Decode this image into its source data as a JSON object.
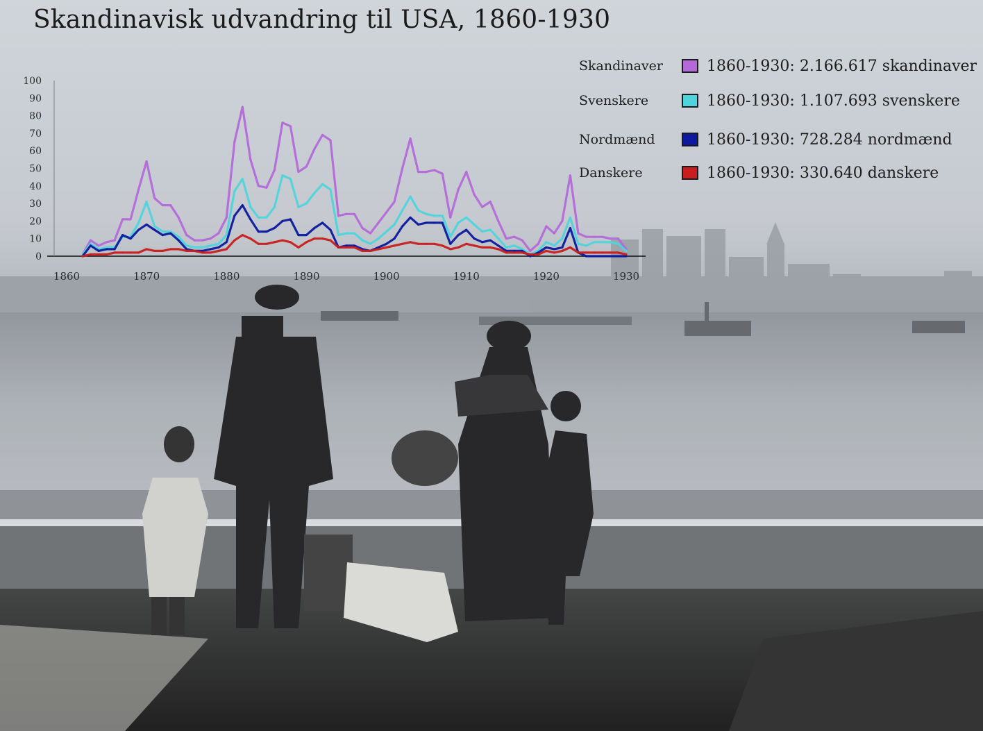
{
  "title": "Skandinavisk udvandring til USA, 1860-1930",
  "legend": [
    {
      "name": "Skandinaver",
      "text": "1860-1930: 2.166.617 skandinaver",
      "color": "#b36ad8"
    },
    {
      "name": "Svenskere",
      "text": "1860-1930: 1.107.693 svenskere",
      "color": "#4fd4dc"
    },
    {
      "name": "Nordmænd",
      "text": "1860-1930:  728.284 nordmænd",
      "color": "#0d1a9e"
    },
    {
      "name": "Danskere",
      "text": "1860-1930:  330.640 danskere",
      "color": "#c81e1e"
    }
  ],
  "chart_data": {
    "type": "line",
    "title": "Skandinavisk udvandring til USA, 1860-1930",
    "xlabel": "",
    "ylabel": "",
    "xlim": [
      1860,
      1930
    ],
    "ylim": [
      0,
      100
    ],
    "x_ticks": [
      "1860",
      "1870",
      "1880",
      "1890",
      "1900",
      "1910",
      "1920",
      "1930"
    ],
    "y_ticks": [
      "0",
      "10",
      "20",
      "30",
      "40",
      "50",
      "60",
      "70",
      "80",
      "90",
      "100"
    ],
    "grid": false,
    "legend_position": "top-right",
    "x": [
      1862,
      1863,
      1864,
      1865,
      1866,
      1867,
      1868,
      1869,
      1870,
      1871,
      1872,
      1873,
      1874,
      1875,
      1876,
      1877,
      1878,
      1879,
      1880,
      1881,
      1882,
      1883,
      1884,
      1885,
      1886,
      1887,
      1888,
      1889,
      1890,
      1891,
      1892,
      1893,
      1894,
      1895,
      1896,
      1897,
      1898,
      1899,
      1900,
      1901,
      1902,
      1903,
      1904,
      1905,
      1906,
      1907,
      1908,
      1909,
      1910,
      1911,
      1912,
      1913,
      1914,
      1915,
      1916,
      1917,
      1918,
      1919,
      1920,
      1921,
      1922,
      1923,
      1924,
      1925,
      1926,
      1927,
      1928,
      1929,
      1930
    ],
    "series": [
      {
        "name": "Skandinaver",
        "color": "#b36ad8",
        "values": [
          1,
          9,
          6,
          8,
          9,
          21,
          21,
          38,
          54,
          33,
          29,
          29,
          22,
          12,
          9,
          9,
          10,
          13,
          22,
          65,
          85,
          55,
          40,
          39,
          49,
          76,
          74,
          48,
          51,
          61,
          69,
          66,
          23,
          24,
          24,
          16,
          13,
          19,
          25,
          31,
          50,
          67,
          48,
          48,
          49,
          47,
          22,
          38,
          48,
          35,
          28,
          31,
          20,
          10,
          11,
          9,
          3,
          7,
          17,
          13,
          20,
          46,
          13,
          11,
          11,
          11,
          10,
          10,
          4
        ]
      },
      {
        "name": "Svenskere",
        "color": "#4fd4dc",
        "values": [
          1,
          7,
          4,
          5,
          5,
          11,
          11,
          19,
          31,
          17,
          14,
          14,
          11,
          6,
          5,
          5,
          6,
          7,
          12,
          37,
          44,
          28,
          22,
          22,
          28,
          46,
          44,
          28,
          30,
          36,
          41,
          38,
          12,
          13,
          13,
          9,
          7,
          10,
          14,
          18,
          26,
          34,
          26,
          24,
          23,
          23,
          11,
          19,
          22,
          18,
          14,
          15,
          10,
          5,
          6,
          4,
          1,
          3,
          8,
          6,
          10,
          22,
          7,
          6,
          8,
          8,
          8,
          7,
          3
        ]
      },
      {
        "name": "Nordmænd",
        "color": "#0d1a9e",
        "values": [
          0,
          6,
          3,
          4,
          4,
          12,
          10,
          15,
          18,
          15,
          12,
          13,
          9,
          4,
          3,
          3,
          4,
          5,
          8,
          23,
          29,
          21,
          14,
          14,
          16,
          20,
          21,
          12,
          12,
          16,
          19,
          15,
          5,
          6,
          6,
          4,
          3,
          5,
          7,
          10,
          17,
          22,
          18,
          19,
          19,
          19,
          7,
          12,
          15,
          10,
          8,
          9,
          6,
          3,
          3,
          3,
          0,
          2,
          5,
          4,
          5,
          16,
          2,
          0,
          0,
          0,
          0,
          0,
          0
        ]
      },
      {
        "name": "Danskere",
        "color": "#c81e1e",
        "values": [
          0,
          1,
          1,
          1,
          2,
          2,
          2,
          2,
          4,
          3,
          3,
          4,
          4,
          3,
          3,
          2,
          2,
          3,
          4,
          9,
          12,
          10,
          7,
          7,
          8,
          9,
          8,
          5,
          8,
          10,
          10,
          9,
          5,
          5,
          5,
          3,
          3,
          4,
          5,
          6,
          7,
          8,
          7,
          7,
          7,
          6,
          4,
          5,
          7,
          6,
          5,
          5,
          4,
          2,
          2,
          2,
          1,
          1,
          3,
          2,
          3,
          5,
          2,
          2,
          2,
          2,
          2,
          2,
          1
        ]
      }
    ]
  }
}
